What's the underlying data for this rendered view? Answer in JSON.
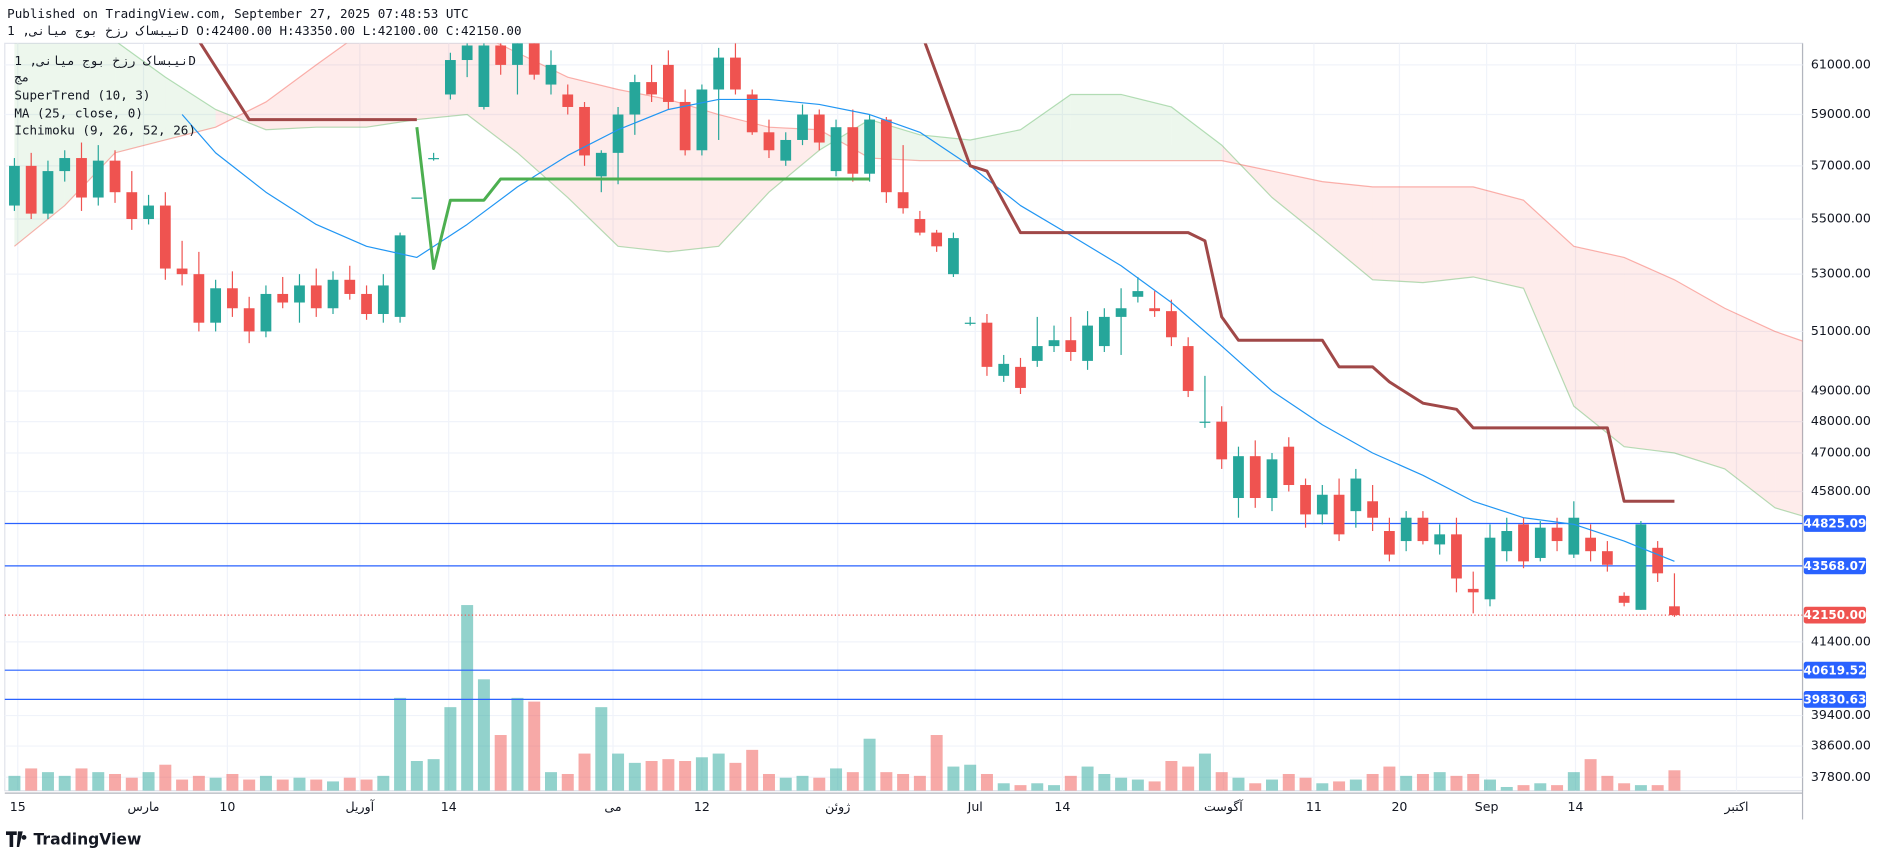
{
  "header": {
    "published": "Published on TradingView.com, September 27, 2025 07:48:53 UTC",
    "symbol_line": "نیبساک رزخ بوج میانی, 1D O:42400.00 H:43350.00 L:42100.00 C:42150.00"
  },
  "legend": [
    "نیبساک رزخ بوج میانی, 1D",
    "مج",
    "SuperTrend (10, 3)",
    "MA (25, close, 0)",
    "Ichimoku (9, 26, 52, 26)"
  ],
  "brand": "TradingView",
  "chart_data": {
    "type": "candlestick",
    "log": true,
    "grid": true,
    "ylim": [
      37460,
      61890
    ],
    "yticks": [
      {
        "value": 61000,
        "label": "61000.00"
      },
      {
        "value": 59000,
        "label": "59000.00"
      },
      {
        "value": 57000,
        "label": "57000.00"
      },
      {
        "value": 55000,
        "label": "55000.00"
      },
      {
        "value": 53000,
        "label": "53000.00"
      },
      {
        "value": 51000,
        "label": "51000.00"
      },
      {
        "value": 49000,
        "label": "49000.00"
      },
      {
        "value": 48000,
        "label": "48000.00"
      },
      {
        "value": 47000,
        "label": "47000.00"
      },
      {
        "value": 45800,
        "label": "45800.00"
      },
      {
        "value": 41400,
        "label": "41400.00"
      },
      {
        "value": 39400,
        "label": "39400.00"
      },
      {
        "value": 38600,
        "label": "38600.00"
      },
      {
        "value": 37800,
        "label": "37800.00"
      }
    ],
    "xlim": [
      -0.86,
      106.64
    ],
    "xticks": [
      {
        "value": 0.2,
        "label": "15"
      },
      {
        "value": 7.7,
        "label": "مارس"
      },
      {
        "value": 12.7,
        "label": "10"
      },
      {
        "value": 20.6,
        "label": "آوریل"
      },
      {
        "value": 25.9,
        "label": "14"
      },
      {
        "value": 35.7,
        "label": "می"
      },
      {
        "value": 41,
        "label": "12"
      },
      {
        "value": 49.1,
        "label": "ژوئن"
      },
      {
        "value": 57.3,
        "label": "Jul"
      },
      {
        "value": 62.5,
        "label": "14"
      },
      {
        "value": 72.1,
        "label": "آگوست"
      },
      {
        "value": 77.5,
        "label": "11"
      },
      {
        "value": 82.6,
        "label": "20"
      },
      {
        "value": 87.8,
        "label": "Sep"
      },
      {
        "value": 93.1,
        "label": "14"
      },
      {
        "value": 102.7,
        "label": "اکتبر"
      }
    ],
    "up_color": "#26a69a",
    "down_color": "#ef5350",
    "ohlc": [
      [
        55500,
        57300,
        55300,
        57000
      ],
      [
        57000,
        57500,
        55000,
        55200
      ],
      [
        55200,
        57200,
        55000,
        56800
      ],
      [
        56800,
        57600,
        56400,
        57300
      ],
      [
        57300,
        57900,
        55300,
        55800
      ],
      [
        55800,
        57800,
        55500,
        57200
      ],
      [
        57200,
        57600,
        55600,
        56000
      ],
      [
        56000,
        56800,
        54600,
        55000
      ],
      [
        55000,
        55900,
        54800,
        55500
      ],
      [
        55500,
        56000,
        52800,
        53200
      ],
      [
        53200,
        54200,
        52600,
        53000
      ],
      [
        53000,
        53800,
        51000,
        51300
      ],
      [
        51300,
        52800,
        51000,
        52500
      ],
      [
        52500,
        53100,
        51500,
        51800
      ],
      [
        51800,
        52200,
        50600,
        51000
      ],
      [
        51000,
        52600,
        50800,
        52300
      ],
      [
        52300,
        52900,
        51800,
        52000
      ],
      [
        52000,
        53000,
        51300,
        52600
      ],
      [
        52600,
        53200,
        51500,
        51800
      ],
      [
        51800,
        53100,
        51600,
        52800
      ],
      [
        52800,
        53300,
        52100,
        52300
      ],
      [
        52300,
        52600,
        51400,
        51600
      ],
      [
        51600,
        53000,
        51300,
        52600
      ],
      [
        51500,
        54500,
        51300,
        54400
      ],
      [
        55800,
        55800,
        55800,
        55800
      ],
      [
        57300,
        57500,
        57200,
        57300
      ],
      [
        59800,
        61500,
        59600,
        61200
      ],
      [
        61200,
        62500,
        60500,
        61800
      ],
      [
        59300,
        62500,
        59200,
        61800
      ],
      [
        61800,
        62200,
        60600,
        61000
      ],
      [
        61000,
        62400,
        59800,
        62000
      ],
      [
        62000,
        62300,
        60400,
        60600
      ],
      [
        60200,
        61600,
        59800,
        61000
      ],
      [
        59800,
        60200,
        59000,
        59300
      ],
      [
        59300,
        59500,
        57000,
        57400
      ],
      [
        56600,
        57600,
        56000,
        57500
      ],
      [
        57500,
        59300,
        56300,
        59000
      ],
      [
        59000,
        60600,
        58200,
        60300
      ],
      [
        60300,
        61000,
        59500,
        59800
      ],
      [
        61000,
        61600,
        59200,
        59500
      ],
      [
        59500,
        60000,
        57400,
        57600
      ],
      [
        57600,
        60200,
        57400,
        60000
      ],
      [
        60000,
        61700,
        58000,
        61300
      ],
      [
        61300,
        62000,
        59800,
        60000
      ],
      [
        59800,
        60000,
        58200,
        58300
      ],
      [
        58300,
        58800,
        57300,
        57600
      ],
      [
        57200,
        58300,
        57000,
        58000
      ],
      [
        58000,
        59400,
        57800,
        59000
      ],
      [
        59000,
        59200,
        57600,
        57900
      ],
      [
        56800,
        58800,
        56600,
        58500
      ],
      [
        58500,
        59200,
        56400,
        56700
      ],
      [
        56700,
        59000,
        56400,
        58800
      ],
      [
        58800,
        58900,
        55600,
        56000
      ],
      [
        56000,
        57800,
        55200,
        55400
      ],
      [
        55000,
        55300,
        54400,
        54500
      ],
      [
        54500,
        54600,
        53800,
        54000
      ],
      [
        53000,
        54500,
        52900,
        54300
      ],
      [
        51300,
        51500,
        51200,
        51300
      ],
      [
        51300,
        51600,
        49500,
        49800
      ],
      [
        49500,
        50200,
        49300,
        49900
      ],
      [
        49800,
        50100,
        48900,
        49100
      ],
      [
        50000,
        51500,
        49800,
        50500
      ],
      [
        50500,
        51200,
        50300,
        50700
      ],
      [
        50700,
        51500,
        50000,
        50300
      ],
      [
        50000,
        51700,
        49700,
        51200
      ],
      [
        50500,
        51800,
        50300,
        51500
      ],
      [
        51500,
        52500,
        50200,
        51800
      ],
      [
        52200,
        52900,
        52000,
        52400
      ],
      [
        51800,
        52400,
        51500,
        51700
      ],
      [
        51700,
        52100,
        50500,
        50800
      ],
      [
        50500,
        50800,
        48800,
        49000
      ],
      [
        48000,
        49500,
        47800,
        48000
      ],
      [
        48000,
        48500,
        46500,
        46800
      ],
      [
        45600,
        47200,
        45000,
        46900
      ],
      [
        46900,
        47400,
        45300,
        45600
      ],
      [
        45600,
        47000,
        45200,
        46800
      ],
      [
        47200,
        47500,
        45800,
        46000
      ],
      [
        46000,
        46200,
        44700,
        45100
      ],
      [
        45100,
        46000,
        44800,
        45700
      ],
      [
        45700,
        46200,
        44300,
        44500
      ],
      [
        45200,
        46500,
        44700,
        46200
      ],
      [
        45500,
        46000,
        44600,
        45000
      ],
      [
        44600,
        45000,
        43700,
        43900
      ],
      [
        44300,
        45200,
        44000,
        45000
      ],
      [
        45000,
        45200,
        44200,
        44300
      ],
      [
        44200,
        44800,
        43900,
        44500
      ],
      [
        44500,
        45000,
        42800,
        43200
      ],
      [
        42900,
        43400,
        42200,
        42800
      ],
      [
        42600,
        44800,
        42400,
        44400
      ],
      [
        44000,
        45000,
        43700,
        44600
      ],
      [
        44800,
        45000,
        43500,
        43700
      ],
      [
        43800,
        44900,
        43700,
        44700
      ],
      [
        44700,
        45000,
        44000,
        44300
      ],
      [
        43900,
        45500,
        43800,
        45000
      ],
      [
        44400,
        44800,
        43700,
        44000
      ],
      [
        44000,
        44300,
        43400,
        43600
      ],
      [
        42700,
        42800,
        42400,
        42500
      ],
      [
        42300,
        44900,
        42300,
        44800
      ],
      [
        44100,
        44300,
        43100,
        43350
      ],
      [
        42400,
        43350,
        42100,
        42150
      ]
    ],
    "volume": [
      8,
      12,
      10,
      8,
      12,
      10,
      9,
      7,
      10,
      14,
      6,
      8,
      7,
      9,
      6,
      8,
      6,
      7,
      6,
      5,
      7,
      6,
      8,
      50,
      16,
      17,
      45,
      100,
      60,
      30,
      50,
      48,
      10,
      9,
      20,
      45,
      20,
      15,
      16,
      17,
      16,
      18,
      20,
      15,
      22,
      9,
      7,
      8,
      7,
      12,
      10,
      28,
      10,
      9,
      8,
      30,
      13,
      14,
      9,
      4,
      3,
      4,
      3,
      8,
      13,
      9,
      7,
      6,
      5,
      16,
      13,
      20,
      10,
      7,
      4,
      6,
      9,
      7,
      4,
      5,
      6,
      9,
      13,
      8,
      9,
      10,
      8,
      9,
      6,
      2,
      3,
      4,
      3,
      10,
      17,
      8,
      4,
      3,
      3,
      11
    ],
    "vlim": [
      0,
      100
    ],
    "lines": [
      {
        "name": "MA (25, close, 0)",
        "color": "#2196f3",
        "x": [
          10,
          12,
          15,
          18,
          21,
          24,
          27,
          30,
          33,
          36,
          39,
          42,
          45,
          48,
          51,
          54,
          57,
          60,
          63,
          66,
          69,
          72,
          75,
          78,
          81,
          84,
          87,
          90,
          93,
          96,
          99
        ],
        "values": [
          59000,
          57500,
          56000,
          54800,
          54000,
          53600,
          54800,
          56200,
          57400,
          58400,
          59200,
          59600,
          59600,
          59400,
          59000,
          58300,
          57000,
          55500,
          54400,
          53300,
          52000,
          50500,
          49000,
          47900,
          47000,
          46300,
          45500,
          45000,
          44800,
          44300,
          43700
        ]
      },
      {
        "name": "SuperTrend (10, 3)",
        "color": "#4caf50",
        "x": [
          24,
          25,
          26,
          28,
          29,
          51
        ],
        "values": [
          58500,
          53200,
          55700,
          55700,
          56500,
          56500
        ]
      },
      {
        "name": "SuperTrend (10, 3)",
        "color": "#a04848",
        "x": [
          11,
          14,
          24,
          null,
          51,
          null,
          54,
          57,
          58,
          60,
          70,
          71,
          72,
          73,
          78,
          79,
          81,
          82,
          84,
          86,
          87,
          95,
          96,
          99
        ],
        "values": [
          62000,
          58800,
          58800,
          null,
          62500,
          null,
          62500,
          57000,
          56800,
          54500,
          54500,
          54200,
          51500,
          50700,
          50700,
          49800,
          49800,
          49300,
          48600,
          48400,
          47800,
          47800,
          45500,
          45500
        ]
      }
    ],
    "cloud": {
      "name": "Ichimoku (9, 26, 52, 26)",
      "x": [
        0,
        3,
        6,
        9,
        12,
        15,
        18,
        21,
        24,
        27,
        30,
        33,
        36,
        39,
        42,
        45,
        48,
        51,
        54,
        57,
        60,
        63,
        66,
        69,
        72,
        75,
        78,
        81,
        84,
        87,
        90,
        93,
        96,
        99,
        102,
        105,
        107
      ],
      "span_a": [
        62500,
        62500,
        62000,
        60500,
        59200,
        58400,
        58500,
        58500,
        58800,
        59000,
        57500,
        55800,
        54000,
        53800,
        54000,
        56000,
        57600,
        58800,
        58200,
        58000,
        58400,
        59800,
        59800,
        59300,
        57800,
        55800,
        54300,
        52800,
        52700,
        52900,
        52500,
        48500,
        47200,
        47000,
        46500,
        45300,
        45000
      ],
      "span_b": [
        54000,
        55500,
        57500,
        58000,
        58500,
        59500,
        61000,
        62500,
        62500,
        62500,
        61500,
        60500,
        60000,
        59600,
        59000,
        58500,
        58400,
        57300,
        57200,
        57200,
        57200,
        57200,
        57200,
        57200,
        57200,
        56800,
        56400,
        56200,
        56200,
        56200,
        55700,
        54000,
        53600,
        52800,
        51800,
        51000,
        50600
      ],
      "up_color": "#4caf50",
      "down_color": "#f44336"
    },
    "levels": [
      {
        "value": 44825.09,
        "label": "44825.09"
      },
      {
        "value": 43568.07,
        "label": "43568.07"
      },
      {
        "value": 40619.52,
        "label": "40619.52"
      },
      {
        "value": 39830.63,
        "label": "39830.63"
      }
    ],
    "level_color": "#2962ff",
    "last_price": {
      "value": 42150,
      "label": "42150.00"
    }
  }
}
